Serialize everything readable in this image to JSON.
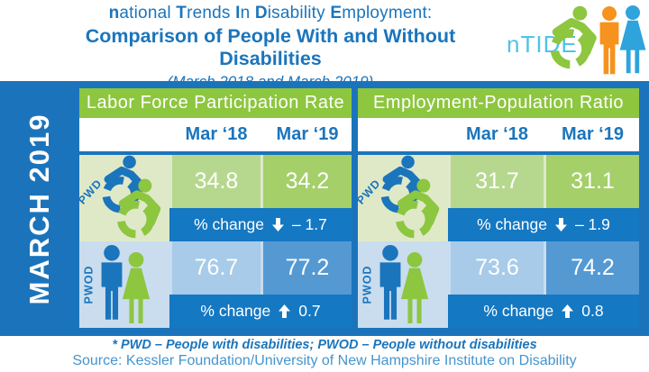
{
  "header": {
    "title_line1": "national Trends In Disability Employment:",
    "title_line1_segments": [
      {
        "text": "n",
        "bold": true
      },
      {
        "text": "ational ",
        "bold": false
      },
      {
        "text": "T",
        "bold": true
      },
      {
        "text": "rends ",
        "bold": false
      },
      {
        "text": "I",
        "bold": true
      },
      {
        "text": "n ",
        "bold": false
      },
      {
        "text": "D",
        "bold": true
      },
      {
        "text": "isability ",
        "bold": false
      },
      {
        "text": "E",
        "bold": true
      },
      {
        "text": "mployment:",
        "bold": false
      }
    ],
    "title_line2": "Comparison of People With and Without Disabilities",
    "subtitle": "(March 2018 and March 2019)",
    "logo_text": "nTIDE"
  },
  "sidebar": {
    "label": "MARCH 2019"
  },
  "panels": [
    {
      "title": "Labor Force Participation Rate",
      "columns": [
        "Mar ‘18",
        "Mar ‘19"
      ],
      "pwd": {
        "label": "PWD",
        "values": [
          "34.8",
          "34.2"
        ],
        "change_label": "% change",
        "change_dir": "down",
        "change_value": "– 1.7"
      },
      "pwod": {
        "label": "PWOD",
        "values": [
          "76.7",
          "77.2"
        ],
        "change_label": "% change",
        "change_dir": "up",
        "change_value": "0.7"
      }
    },
    {
      "title": "Employment-Population Ratio",
      "columns": [
        "Mar ‘18",
        "Mar ‘19"
      ],
      "pwd": {
        "label": "PWD",
        "values": [
          "31.7",
          "31.1"
        ],
        "change_label": "% change",
        "change_dir": "down",
        "change_value": "– 1.9"
      },
      "pwod": {
        "label": "PWOD",
        "values": [
          "73.6",
          "74.2"
        ],
        "change_label": "% change",
        "change_dir": "up",
        "change_value": "0.8"
      }
    }
  ],
  "footer": {
    "note": "* PWD – People with disabilities;  PWOD – People without disabilities",
    "source": "Source: Kessler Foundation/University of New Hampshire Institute on Disability"
  },
  "chart_data": [
    {
      "type": "table",
      "title": "Labor Force Participation Rate",
      "columns": [
        "Mar '18",
        "Mar '19"
      ],
      "rows": [
        {
          "group": "PWD (People with disabilities)",
          "values": [
            34.8,
            34.2
          ],
          "pct_change": -1.7
        },
        {
          "group": "PWOD (People without disabilities)",
          "values": [
            76.7,
            77.2
          ],
          "pct_change": 0.7
        }
      ]
    },
    {
      "type": "table",
      "title": "Employment-Population Ratio",
      "columns": [
        "Mar '18",
        "Mar '19"
      ],
      "rows": [
        {
          "group": "PWD (People with disabilities)",
          "values": [
            31.7,
            31.1
          ],
          "pct_change": -1.9
        },
        {
          "group": "PWOD (People without disabilities)",
          "values": [
            73.6,
            74.2
          ],
          "pct_change": 0.8
        }
      ]
    }
  ],
  "colors": {
    "brand_blue": "#1B75BC",
    "band_blue": "#1B74BB",
    "change_band_blue": "#1478C2",
    "green": "#8DC63F",
    "pale_green": "#DFE9C8",
    "cell_green_light": "#B6D88E",
    "cell_green_dark": "#A4CF69",
    "pale_blue": "#C9DDEF",
    "cell_blue_light": "#A7CBE8",
    "cell_blue_dark": "#5599D3",
    "logo_blue": "#4FC3E9",
    "logo_orange": "#F6921E",
    "logo_woman_blue": "#2EA3DC",
    "source_blue": "#4495CE"
  }
}
